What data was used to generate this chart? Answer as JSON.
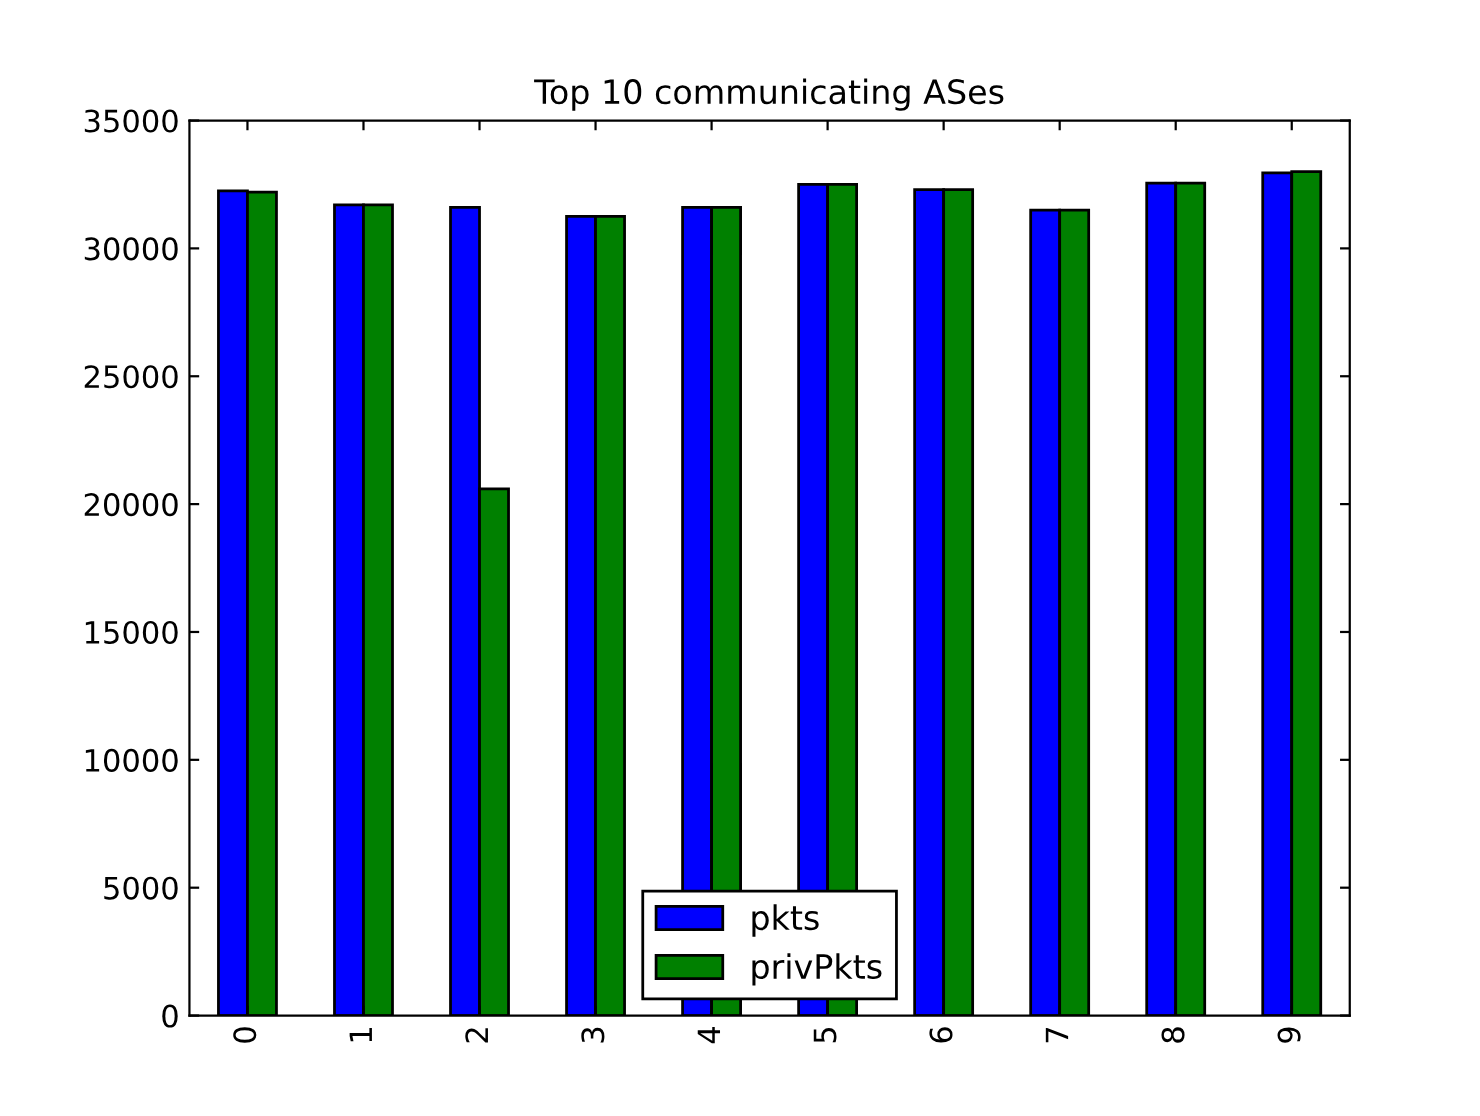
{
  "chart_data": {
    "type": "bar",
    "title": "Top 10 communicating ASes",
    "categories": [
      "0",
      "1",
      "2",
      "3",
      "4",
      "5",
      "6",
      "7",
      "8",
      "9"
    ],
    "series": [
      {
        "name": "pkts",
        "color": "#0000ff",
        "values": [
          32250,
          31700,
          31600,
          31250,
          31600,
          32500,
          32300,
          31500,
          32550,
          32950
        ]
      },
      {
        "name": "privPkts",
        "color": "#008000",
        "values": [
          32200,
          31700,
          20600,
          31250,
          31600,
          32500,
          32300,
          31500,
          32550,
          33000
        ]
      }
    ],
    "ylim": [
      0,
      35000
    ],
    "yticks": [
      0,
      5000,
      10000,
      15000,
      20000,
      25000,
      30000,
      35000
    ],
    "grid": false,
    "legend": "bottom"
  }
}
